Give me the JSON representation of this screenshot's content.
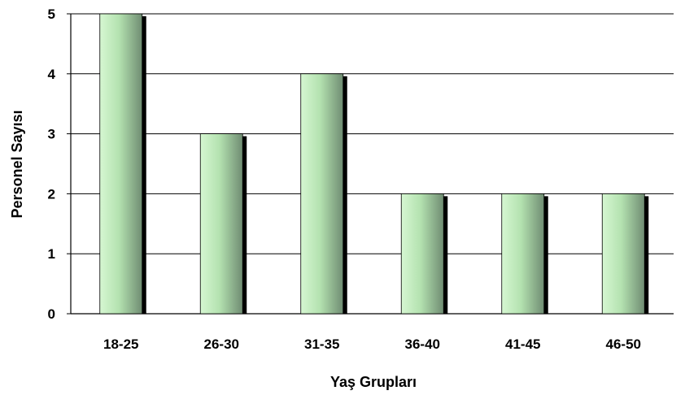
{
  "chart_data": {
    "type": "bar",
    "categories": [
      "18-25",
      "26-30",
      "31-35",
      "36-40",
      "41-45",
      "46-50"
    ],
    "values": [
      5,
      3,
      4,
      2,
      2,
      2
    ],
    "title": "",
    "xlabel": "Yaş Grupları",
    "ylabel": "Personel Sayısı",
    "ylim": [
      0,
      5
    ],
    "yticks": [
      "0",
      "1",
      "2",
      "3",
      "4",
      "5"
    ],
    "grid": true,
    "legend": "none",
    "colors": {
      "bar_light": "#d6f7d2",
      "bar_mid": "#b4e2b0",
      "bar_dark": "#6f8c72",
      "shadow": "#000000",
      "grid": "#000000"
    }
  }
}
